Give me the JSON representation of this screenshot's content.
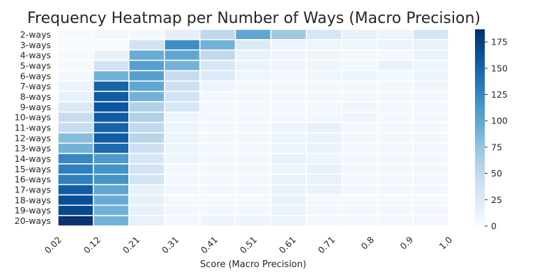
{
  "chart_data": {
    "type": "heatmap",
    "title": "Frequency Heatmap per Number of Ways (Macro Precision)",
    "xlabel": "Score (Macro Precision)",
    "ylabel": "",
    "x_tick_labels": [
      "0.02",
      "0.12",
      "0.21",
      "0.31",
      "0.41",
      "0.51",
      "0.61",
      "0.71",
      "0.8",
      "0.9",
      "1.0"
    ],
    "rows": [
      "2-ways",
      "3-ways",
      "4-ways",
      "5-ways",
      "6-ways",
      "7-ways",
      "8-ways",
      "9-ways",
      "10-ways",
      "11-ways",
      "12-ways",
      "13-ways",
      "14-ways",
      "15-ways",
      "16-ways",
      "17-ways",
      "18-ways",
      "19-ways",
      "20-ways"
    ],
    "values": [
      [
        2,
        4,
        5,
        18,
        50,
        100,
        70,
        30,
        15,
        10,
        30
      ],
      [
        2,
        2,
        35,
        120,
        90,
        25,
        10,
        8,
        8,
        10,
        15
      ],
      [
        3,
        15,
        95,
        100,
        50,
        15,
        8,
        8,
        5,
        5,
        12
      ],
      [
        3,
        35,
        105,
        90,
        30,
        12,
        8,
        8,
        5,
        15,
        8
      ],
      [
        5,
        90,
        105,
        45,
        25,
        8,
        6,
        8,
        10,
        5,
        10
      ],
      [
        10,
        150,
        100,
        40,
        10,
        5,
        5,
        5,
        5,
        5,
        8
      ],
      [
        15,
        155,
        90,
        35,
        5,
        5,
        5,
        5,
        5,
        5,
        5
      ],
      [
        25,
        160,
        60,
        30,
        5,
        5,
        5,
        5,
        8,
        5,
        5
      ],
      [
        45,
        155,
        60,
        10,
        5,
        5,
        5,
        5,
        8,
        5,
        5
      ],
      [
        45,
        150,
        50,
        10,
        5,
        5,
        10,
        15,
        5,
        5,
        5
      ],
      [
        80,
        155,
        55,
        10,
        5,
        5,
        10,
        12,
        5,
        5,
        5
      ],
      [
        90,
        145,
        40,
        10,
        5,
        5,
        10,
        12,
        5,
        5,
        5
      ],
      [
        125,
        110,
        30,
        10,
        5,
        5,
        15,
        10,
        5,
        5,
        5
      ],
      [
        130,
        115,
        35,
        5,
        5,
        5,
        10,
        15,
        5,
        5,
        5
      ],
      [
        130,
        115,
        35,
        5,
        5,
        5,
        15,
        15,
        5,
        5,
        5
      ],
      [
        155,
        100,
        15,
        5,
        5,
        5,
        12,
        12,
        5,
        5,
        5
      ],
      [
        165,
        95,
        15,
        5,
        5,
        5,
        12,
        5,
        5,
        5,
        5
      ],
      [
        170,
        90,
        15,
        5,
        5,
        5,
        12,
        5,
        5,
        5,
        5
      ],
      [
        185,
        90,
        15,
        5,
        10,
        10,
        10,
        5,
        5,
        5,
        5
      ]
    ],
    "colorbar": {
      "min": 0,
      "max": 187,
      "ticks": [
        0,
        25,
        50,
        75,
        100,
        125,
        150,
        175
      ],
      "colormap": "Blues"
    },
    "grid": false,
    "legend": "colorbar-right"
  }
}
